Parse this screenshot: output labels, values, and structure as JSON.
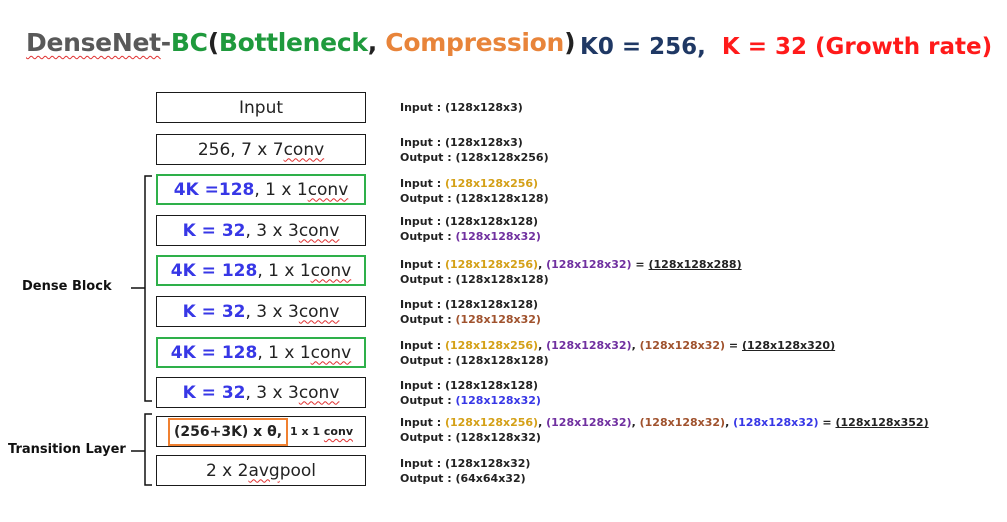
{
  "title": {
    "densenet": "DenseNet",
    "dash": "-",
    "b": "B",
    "c": "C",
    "open": "(",
    "bottleneck": "Bottleneck",
    "comma": ", ",
    "compression": "Compression",
    "close": ")"
  },
  "subtitle": {
    "k0": "K0 = 256,",
    "k": "K = 32 (Growth rate)"
  },
  "labels": {
    "dense_block": "Dense Block",
    "transition_layer": "Transition Layer"
  },
  "layers": {
    "input": "Input",
    "conv7": {
      "pre": "256, 7 x 7 ",
      "conv": "conv"
    },
    "b1": {
      "k": "4K =128",
      "rest": ", 1 x 1 ",
      "conv": "conv"
    },
    "c1": {
      "k": "K = 32",
      "rest": ", 3 x 3 ",
      "conv": "conv"
    },
    "b2": {
      "k": "4K = 128",
      "rest": ", 1 x 1 ",
      "conv": "conv"
    },
    "c2": {
      "k": "K = 32",
      "rest": ", 3 x 3 ",
      "conv": "conv"
    },
    "b3": {
      "k": "4K = 128",
      "rest": ", 1 x 1 ",
      "conv": "conv"
    },
    "c3": {
      "k": "K = 32",
      "rest": ", 3 x 3 ",
      "conv": "conv"
    },
    "transition": {
      "formula": "(256+3K) x θ,",
      "small_pre": "1 x 1 ",
      "small_conv": "conv"
    },
    "pool": {
      "pre": "2 x 2 ",
      "avg": "avg",
      "post": " pool"
    }
  },
  "io": {
    "r0": {
      "in_label": "Input : ",
      "in": "(128x128x3)"
    },
    "r1": {
      "in_label": "Input : ",
      "in": "(128x128x3)",
      "out_label": "Output : ",
      "out": "(128x128x256)"
    },
    "r2": {
      "in_label": "Input : ",
      "in": "(128x128x256)",
      "out_label": "Output : ",
      "out": "(128x128x128)"
    },
    "r3": {
      "in_label": "Input : ",
      "in": "(128x128x128)",
      "out_label": "Output : ",
      "out": "(128x128x32)"
    },
    "r4": {
      "in_label": "Input : ",
      "a": "(128x128x256)",
      "sep1": ", ",
      "b": "(128x128x32)",
      "eq": " = ",
      "total": "(128x128x288)",
      "out_label": "Output : ",
      "out": "(128x128x128)"
    },
    "r5": {
      "in_label": "Input : ",
      "in": "(128x128x128)",
      "out_label": "Output : ",
      "out": "(128x128x32)"
    },
    "r6": {
      "in_label": "Input : ",
      "a": "(128x128x256)",
      "sep1": ", ",
      "b": "(128x128x32)",
      "sep2": ", ",
      "c": "(128x128x32)",
      "eq": " = ",
      "total": "(128x128x320)",
      "out_label": "Output : ",
      "out": "(128x128x128)"
    },
    "r7": {
      "in_label": "Input : ",
      "in": "(128x128x128)",
      "out_label": "Output : ",
      "out": "(128x128x32)"
    },
    "r8": {
      "in_label": "Input : ",
      "a": "(128x128x256)",
      "sep1": ", ",
      "b": "(128x128x32)",
      "sep2": ", ",
      "c": "(128x128x32)",
      "sep3": ", ",
      "d": "(128x128x32)",
      "eq": " = ",
      "total": "(128x128x352)",
      "out_label": "Output : ",
      "out": "(128x128x32)"
    },
    "r9": {
      "in_label": "Input : ",
      "in": "(128x128x32)",
      "out_label": "Output : ",
      "out": "(64x64x32)"
    }
  },
  "colors": {
    "green": "#2eb04a",
    "orange": "#f08030",
    "blue": "#3737e6",
    "gold": "#d4a017",
    "purple": "#7030a0",
    "brown": "#a0522d",
    "navy": "#1f3864",
    "red": "#ff1a1a"
  }
}
